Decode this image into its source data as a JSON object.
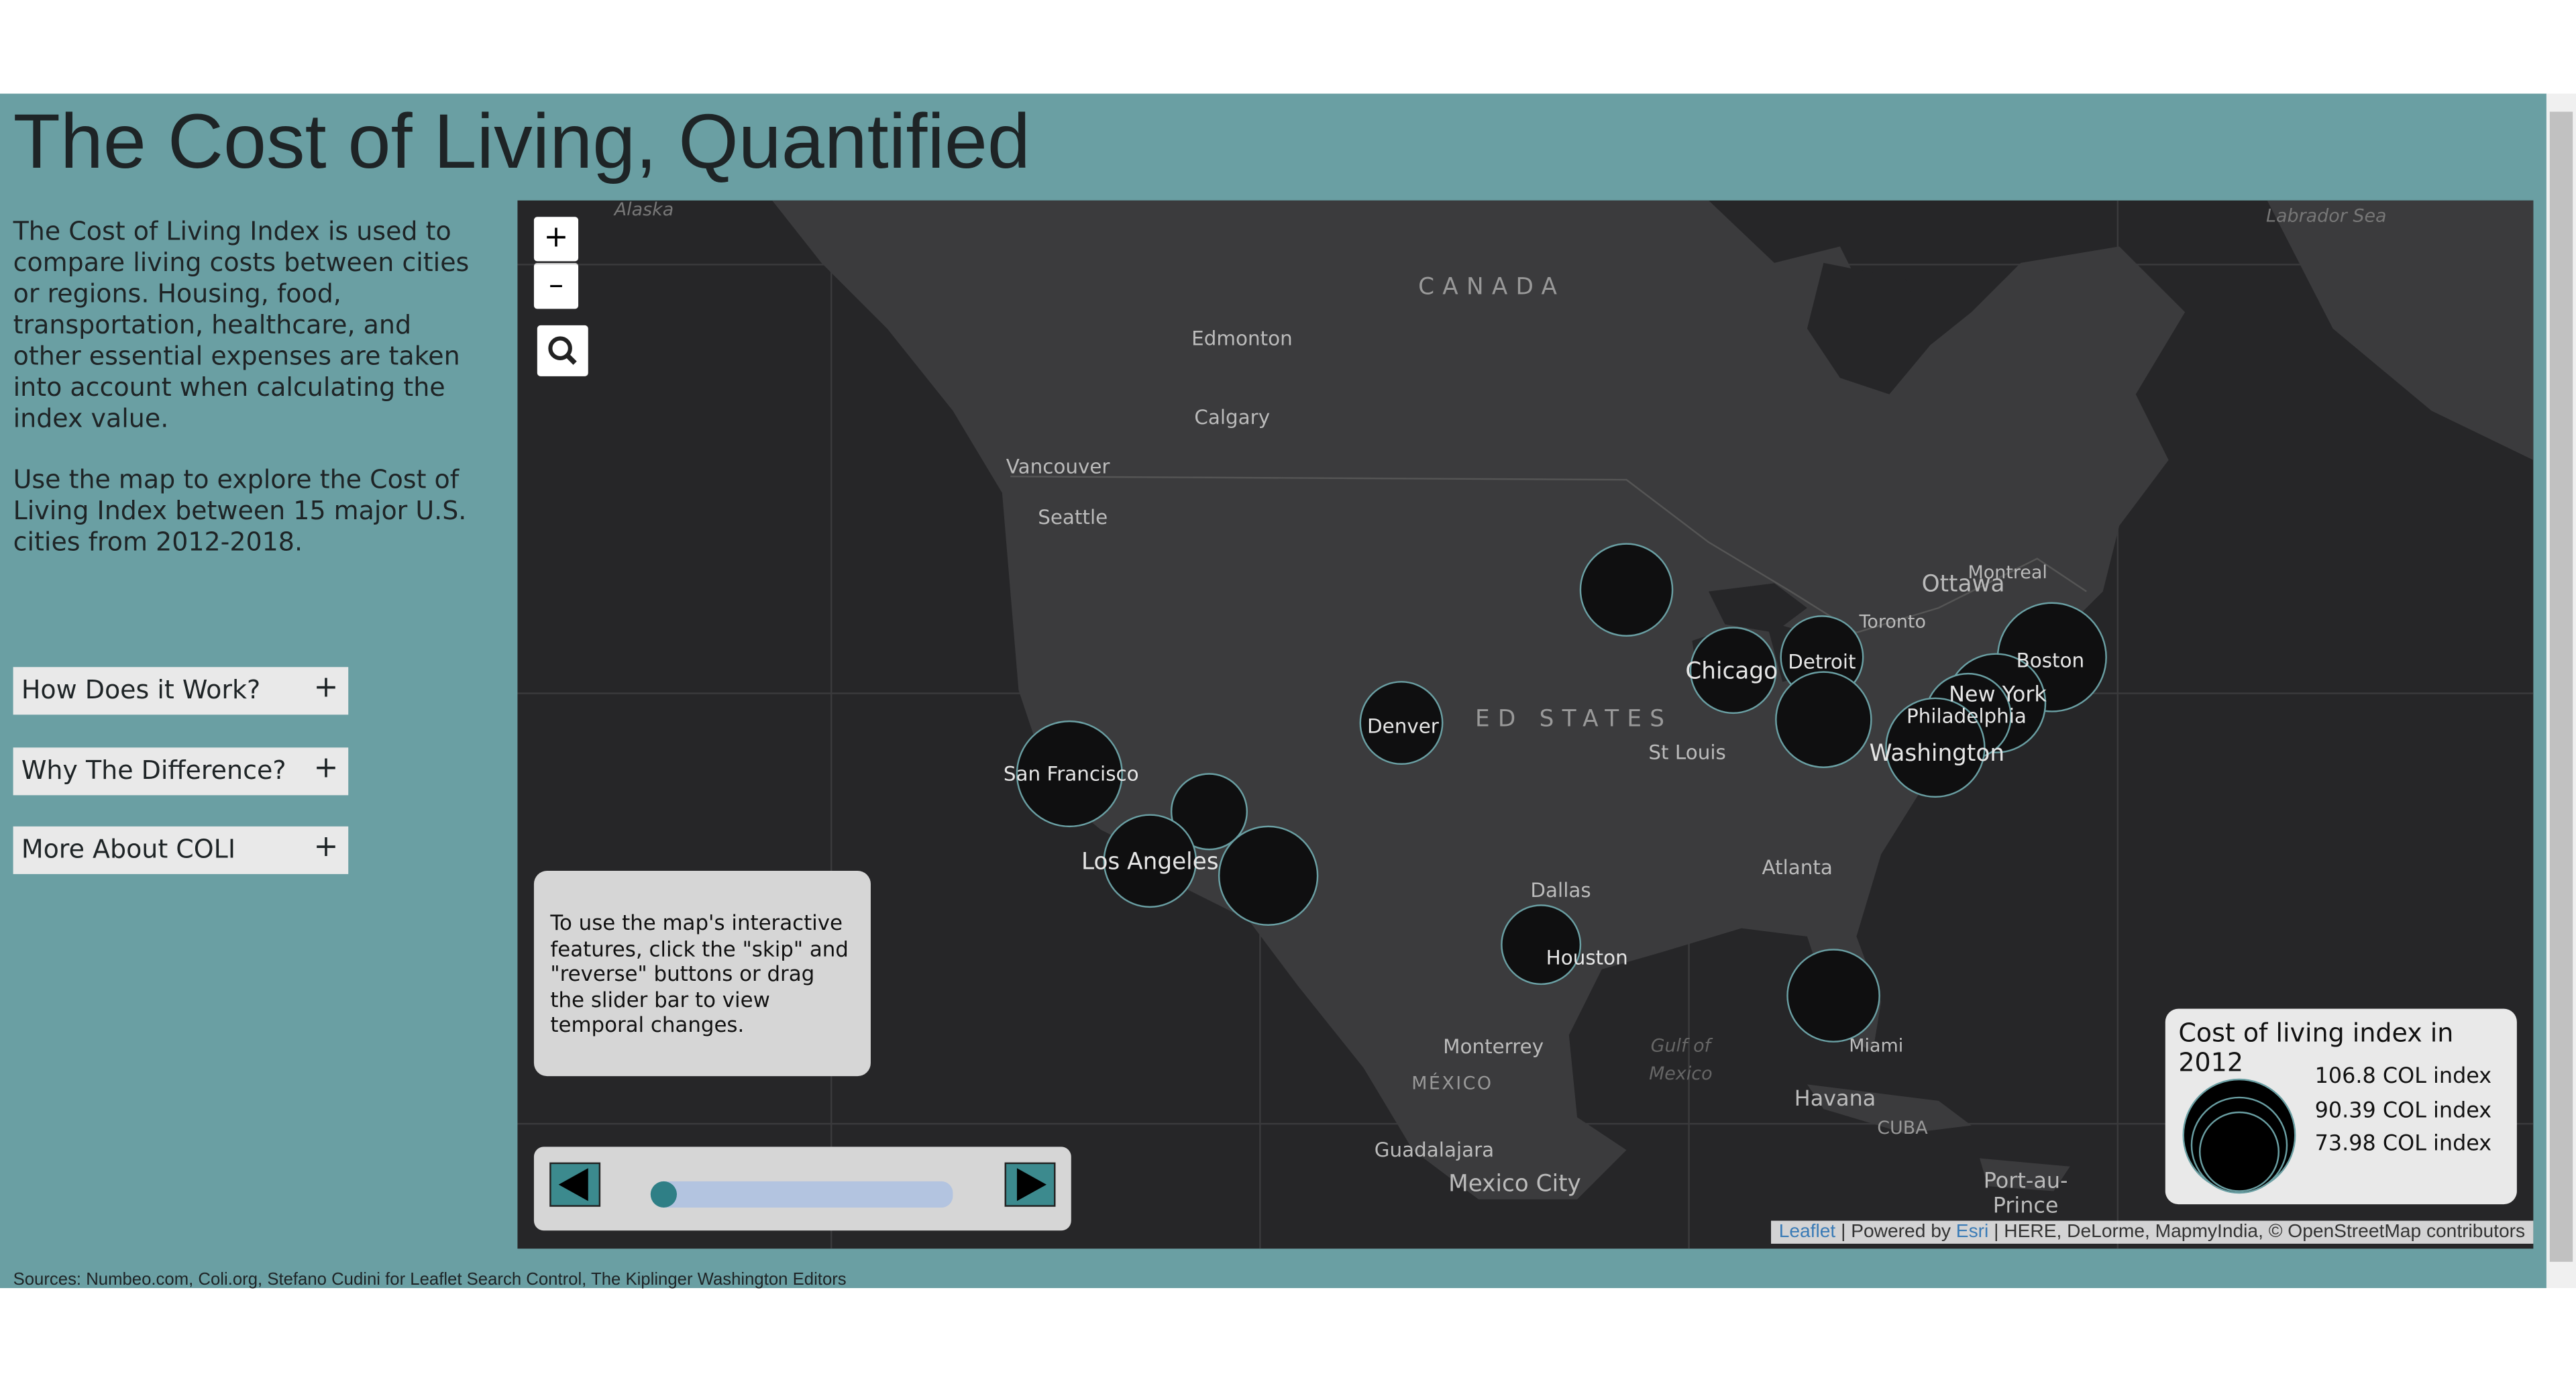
{
  "header": {
    "title": "The Cost of Living, Quantified"
  },
  "sidebar": {
    "paragraphs": [
      "The Cost of Living Index is used to compare living costs between cities or regions. Housing, food, transportation, healthcare, and other essential expenses are taken into account when calculating the index value.",
      "Use the map to explore the Cost of Living Index between 15 major U.S. cities from 2012-2018."
    ],
    "accordion": [
      "How Does it Work?",
      "Why The Difference?",
      "More About COLI"
    ],
    "accordion_icon": "+"
  },
  "map": {
    "zoom_in": "+",
    "zoom_out": "–",
    "labels": [
      "Alaska",
      "CANADA",
      "Edmonton",
      "Calgary",
      "Vancouver",
      "Seattle",
      "Labrador Sea",
      "Ottawa",
      "Montreal",
      "Toronto",
      "ED STATES",
      "St Louis",
      "Atlanta",
      "Dallas",
      "Monterrey",
      "MÉXICO",
      "Gulf of",
      "Mexico",
      "Havana",
      "CUBA",
      "Guadalajara",
      "Mexico City",
      "Port-au-",
      "Prince",
      "Miami"
    ],
    "cities": [
      "Chicago",
      "Detroit",
      "Boston",
      "New York",
      "Philadelphia",
      "Washington",
      "Denver",
      "San Francisco",
      "Los Angeles",
      "Houston"
    ],
    "instructions": "To use the map's interactive features, click the \"skip\" and \"reverse\" buttons or drag the slider bar to view temporal changes.",
    "legend": {
      "title": "Cost of living index in 2012",
      "items": [
        "106.8 COL index",
        "90.39 COL index",
        "73.98 COL index"
      ]
    },
    "attribution": [
      "Leaflet",
      " | Powered by ",
      "Esri",
      " | HERE, DeLorme, MapmyIndia, © OpenStreetMap contributors"
    ]
  },
  "footer": {
    "sources": "Sources: Numbeo.com, Coli.org, Stefano Cudini for Leaflet Search Control, The Kiplinger Washington Editors"
  }
}
